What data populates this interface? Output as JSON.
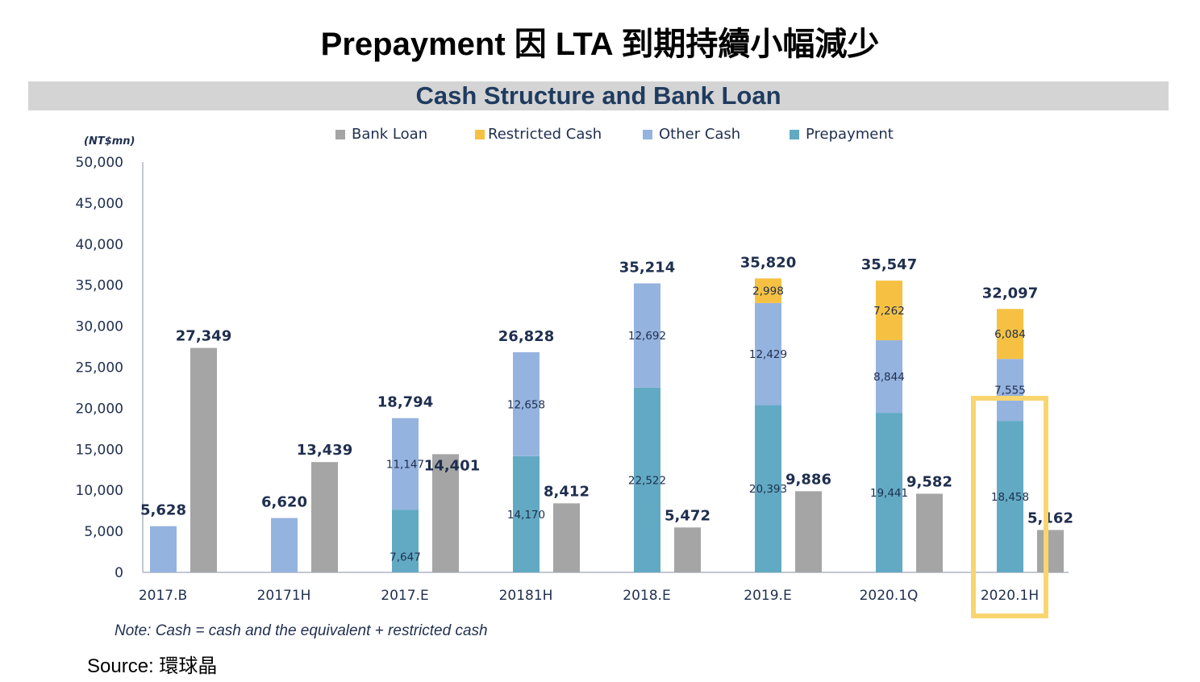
{
  "page": {
    "title": "Prepayment 因 LTA 到期持續小幅減少",
    "banner": "Cash Structure and Bank Loan",
    "unit_label": "(NT$mn)",
    "note": "Note:  Cash  = cash and the equivalent  + restricted cash",
    "source": "Source: 環球晶"
  },
  "legend": [
    {
      "name": "Bank Loan",
      "color": "#a5a5a5"
    },
    {
      "name": "Restricted Cash",
      "color": "#f6c143"
    },
    {
      "name": "Other Cash",
      "color": "#95b3df"
    },
    {
      "name": "Prepayment",
      "color": "#62aac3"
    }
  ],
  "highlight": {
    "category": "2020.1H",
    "color": "#f8d56f"
  },
  "chart_data": {
    "type": "bar",
    "title": "Cash Structure and Bank Loan",
    "xlabel": "",
    "ylabel": "(NT$mn)",
    "ylim": [
      0,
      50000
    ],
    "yticks": [
      0,
      5000,
      10000,
      15000,
      20000,
      25000,
      30000,
      35000,
      40000,
      45000,
      50000
    ],
    "ytick_labels": [
      "0",
      "5,000",
      "10,000",
      "15,000",
      "20,000",
      "25,000",
      "30,000",
      "35,000",
      "40,000",
      "45,000",
      "50,000"
    ],
    "grid": false,
    "legend_position": "top",
    "categories": [
      "2017.B",
      "20171H",
      "2017.E",
      "20181H",
      "2018.E",
      "2019.E",
      "2020.1Q",
      "2020.1H"
    ],
    "stack_series": [
      {
        "name": "Prepayment",
        "color": "#62aac3",
        "values": [
          0,
          0,
          7647,
          14170,
          22522,
          20393,
          19441,
          18458
        ]
      },
      {
        "name": "Other Cash",
        "color": "#95b3df",
        "values": [
          5628,
          6620,
          11147,
          12658,
          12692,
          12429,
          8844,
          7555
        ]
      },
      {
        "name": "Restricted Cash",
        "color": "#f6c143",
        "values": [
          0,
          0,
          0,
          0,
          0,
          2998,
          7262,
          6084
        ]
      }
    ],
    "segment_labels": [
      [
        null,
        null,
        null
      ],
      [
        null,
        null,
        null
      ],
      [
        "7,647",
        "11,147",
        null
      ],
      [
        "14,170",
        "12,658",
        null
      ],
      [
        "22,522",
        "12,692",
        null
      ],
      [
        "20,393",
        "12,429",
        "2,998"
      ],
      [
        "19,441",
        "8,844",
        "7,262"
      ],
      [
        "18,458",
        "7,555",
        "6,084"
      ]
    ],
    "cash_totals": [
      5628,
      6620,
      18794,
      26828,
      35214,
      35820,
      35547,
      32097
    ],
    "cash_total_labels": [
      "5,628",
      "6,620",
      "18,794",
      "26,828",
      "35,214",
      "35,820",
      "35,547",
      "32,097"
    ],
    "bank_loan": {
      "name": "Bank Loan",
      "color": "#a5a5a5",
      "values": [
        27349,
        13439,
        14401,
        8412,
        5472,
        9886,
        9582,
        5162
      ]
    },
    "bank_loan_labels": [
      "27,349",
      "13,439",
      "14,401",
      "8,412",
      "5,472",
      "9,886",
      "9,582",
      "5,162"
    ]
  }
}
